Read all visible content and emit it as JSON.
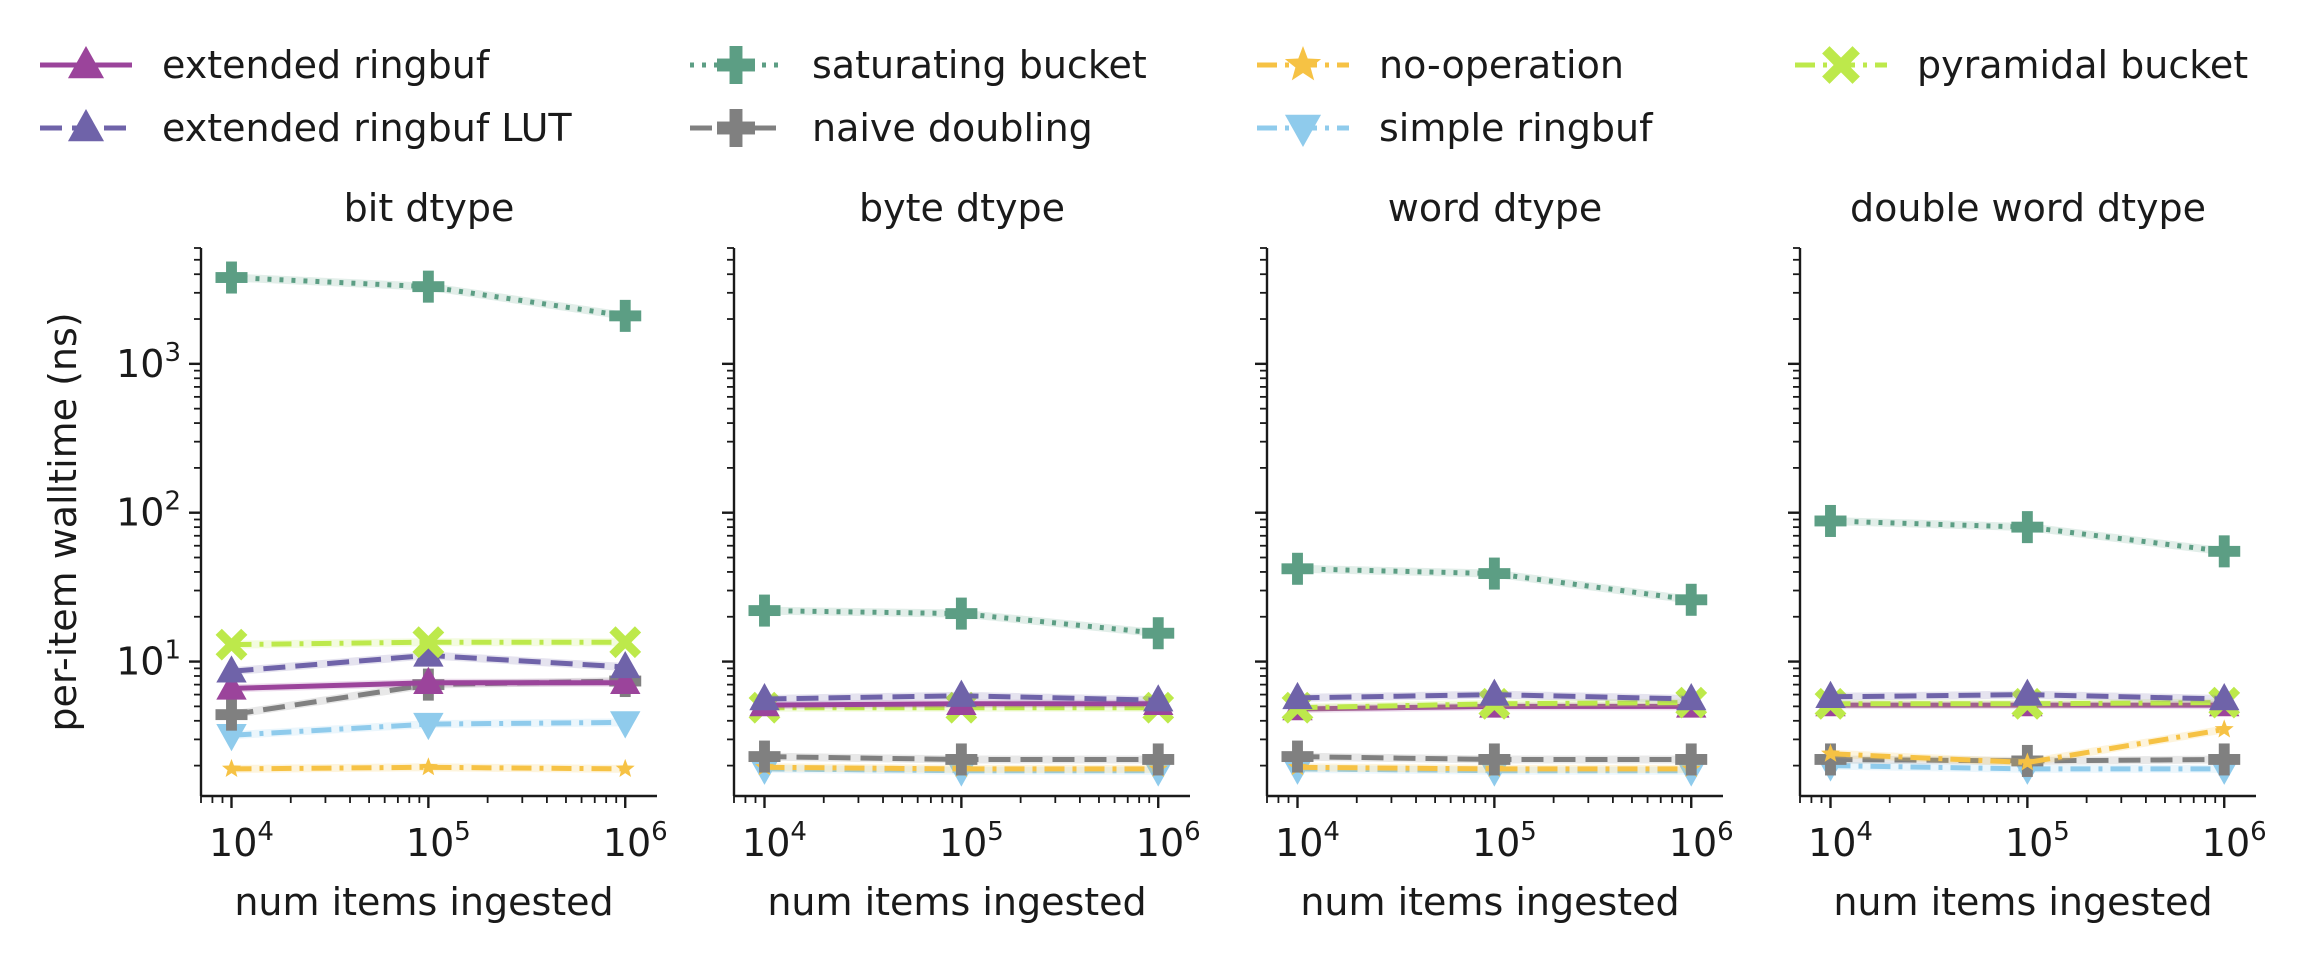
{
  "chart_data": {
    "type": "line",
    "ylabel": "per-item walltime (ns)",
    "xlabel": "num items ingested",
    "x": [
      10000,
      100000,
      1000000
    ],
    "x_tick_labels": [
      {
        "base": "10",
        "exp": "4"
      },
      {
        "base": "10",
        "exp": "5"
      },
      {
        "base": "10",
        "exp": "6"
      }
    ],
    "y_tick_labels": [
      {
        "base": "10",
        "exp": "1"
      },
      {
        "base": "10",
        "exp": "2"
      },
      {
        "base": "10",
        "exp": "3"
      }
    ],
    "x_scale": "log",
    "y_scale": "log",
    "ylim": [
      1.25,
      6000
    ],
    "xlim": [
      7000,
      1450000
    ],
    "legend_position": "top",
    "legend": [
      {
        "key": "extended_ringbuf",
        "label": "extended ringbuf",
        "color": "#9b449b",
        "marker": "triangle-up",
        "dash": "solid"
      },
      {
        "key": "extended_ringbuf_lut",
        "label": "extended ringbuf LUT",
        "color": "#6f63a9",
        "marker": "triangle-up",
        "dash": "dashed"
      },
      {
        "key": "saturating_bucket",
        "label": "saturating bucket",
        "color": "#5c9e84",
        "marker": "plus",
        "dash": "dotted"
      },
      {
        "key": "naive_doubling",
        "label": "naive doubling",
        "color": "#808080",
        "marker": "plus",
        "dash": "dashed"
      },
      {
        "key": "no_operation",
        "label": "no-operation",
        "color": "#f6c244",
        "marker": "star",
        "dash": "dashdot"
      },
      {
        "key": "simple_ringbuf",
        "label": "simple ringbuf",
        "color": "#8fcbec",
        "marker": "triangle-down",
        "dash": "dashdot"
      },
      {
        "key": "pyramidal_bucket",
        "label": "pyramidal bucket",
        "color": "#bde94b",
        "marker": "x",
        "dash": "dashdot"
      }
    ],
    "panels": [
      {
        "title": "bit dtype",
        "series": [
          {
            "key": "saturating_bucket",
            "values": [
              3800,
              3300,
              2100
            ]
          },
          {
            "key": "pyramidal_bucket",
            "values": [
              13,
              13.5,
              13.5
            ]
          },
          {
            "key": "extended_ringbuf_lut",
            "values": [
              8.6,
              11,
              9.2
            ]
          },
          {
            "key": "extended_ringbuf",
            "values": [
              6.6,
              7.2,
              7.2
            ]
          },
          {
            "key": "naive_doubling",
            "values": [
              4.4,
              7,
              7.4
            ]
          },
          {
            "key": "simple_ringbuf",
            "values": [
              3.2,
              3.8,
              3.9
            ]
          },
          {
            "key": "no_operation",
            "values": [
              1.9,
              1.95,
              1.9
            ]
          }
        ]
      },
      {
        "title": "byte dtype",
        "series": [
          {
            "key": "saturating_bucket",
            "values": [
              22,
              21,
              15.5
            ]
          },
          {
            "key": "extended_ringbuf_lut",
            "values": [
              5.6,
              5.9,
              5.5
            ]
          },
          {
            "key": "extended_ringbuf",
            "values": [
              5.1,
              5.2,
              5.2
            ]
          },
          {
            "key": "pyramidal_bucket",
            "values": [
              4.9,
              4.9,
              4.9
            ]
          },
          {
            "key": "naive_doubling",
            "values": [
              2.3,
              2.2,
              2.2
            ]
          },
          {
            "key": "no_operation",
            "values": [
              1.95,
              1.9,
              1.9
            ]
          },
          {
            "key": "simple_ringbuf",
            "values": [
              1.9,
              1.85,
              1.85
            ]
          }
        ]
      },
      {
        "title": "word dtype",
        "series": [
          {
            "key": "saturating_bucket",
            "values": [
              42,
              39,
              26
            ]
          },
          {
            "key": "extended_ringbuf_lut",
            "values": [
              5.7,
              6,
              5.6
            ]
          },
          {
            "key": "pyramidal_bucket",
            "values": [
              4.9,
              5.2,
              5.3
            ]
          },
          {
            "key": "extended_ringbuf",
            "values": [
              4.8,
              5,
              5
            ]
          },
          {
            "key": "naive_doubling",
            "values": [
              2.3,
              2.2,
              2.2
            ]
          },
          {
            "key": "no_operation",
            "values": [
              1.95,
              1.9,
              1.9
            ]
          },
          {
            "key": "simple_ringbuf",
            "values": [
              1.9,
              1.85,
              1.85
            ]
          }
        ]
      },
      {
        "title": "double word dtype",
        "series": [
          {
            "key": "saturating_bucket",
            "values": [
              88,
              80,
              55
            ]
          },
          {
            "key": "extended_ringbuf_lut",
            "values": [
              5.8,
              6,
              5.6
            ]
          },
          {
            "key": "pyramidal_bucket",
            "values": [
              5.2,
              5.2,
              5.3
            ]
          },
          {
            "key": "extended_ringbuf",
            "values": [
              5.1,
              5.1,
              5.1
            ]
          },
          {
            "key": "no_operation",
            "values": [
              2.4,
              2.1,
              3.5
            ]
          },
          {
            "key": "naive_doubling",
            "values": [
              2.2,
              2.15,
              2.2
            ]
          },
          {
            "key": "simple_ringbuf",
            "values": [
              2.0,
              1.9,
              1.9
            ]
          }
        ]
      }
    ]
  }
}
